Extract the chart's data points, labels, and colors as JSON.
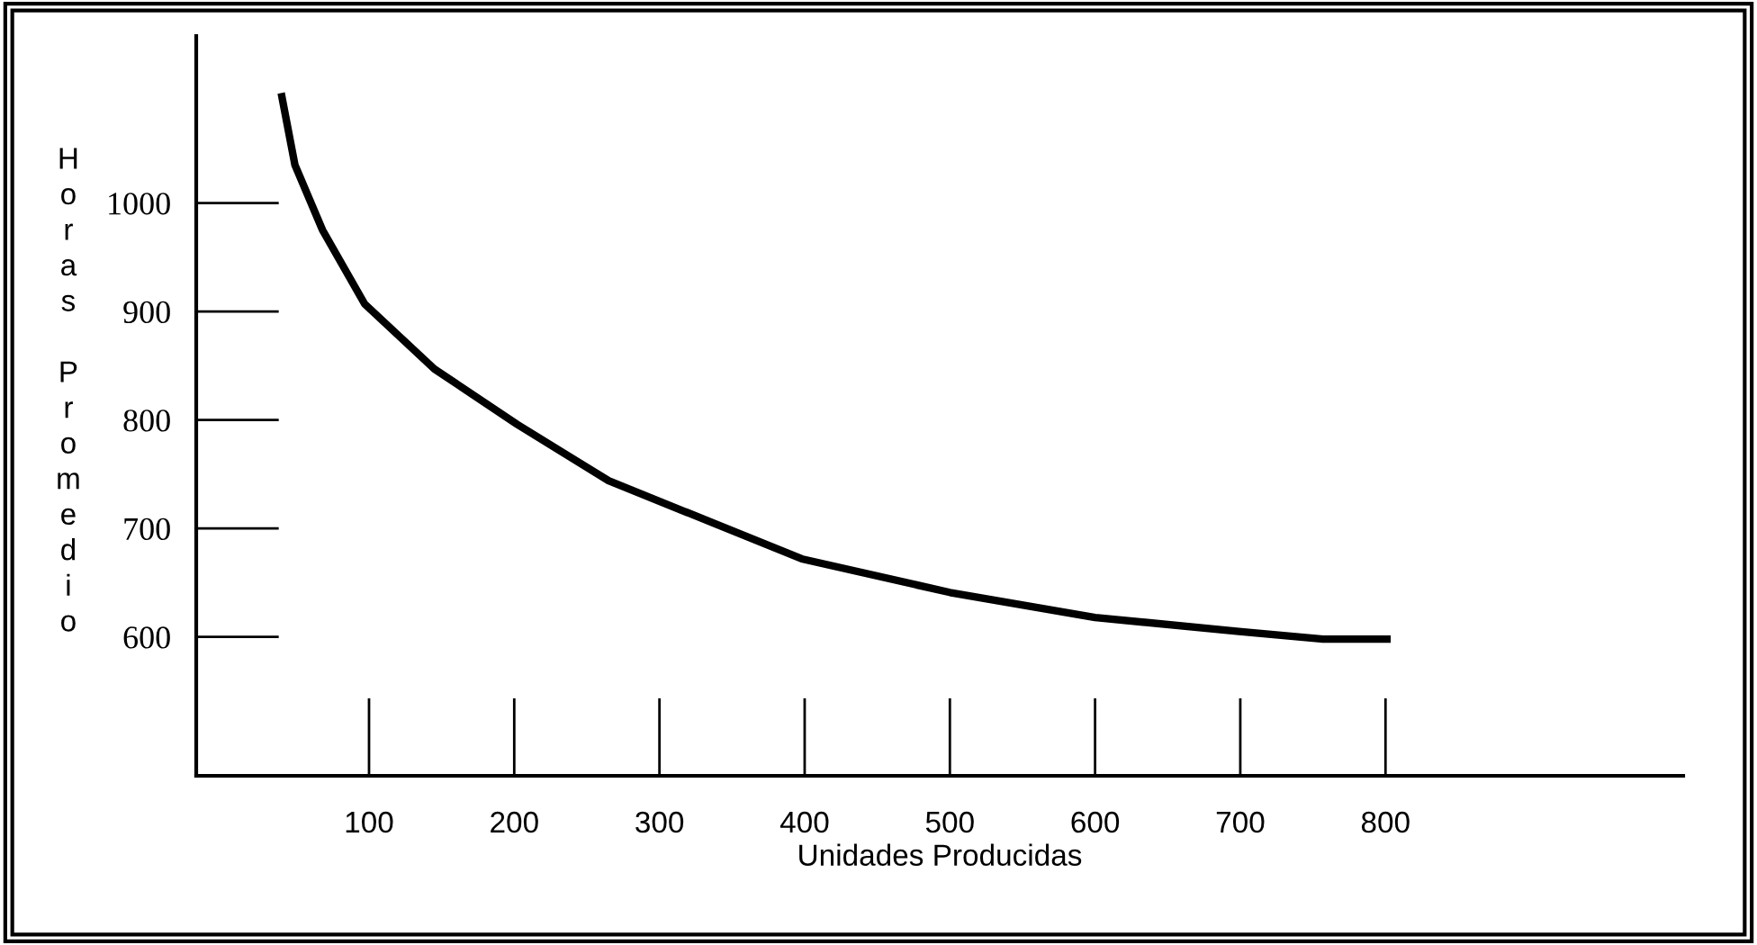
{
  "chart_data": {
    "type": "line",
    "xlabel": "Unidades Producidas",
    "ylabel": "Horas Promedio",
    "x": [
      40,
      49,
      68,
      97,
      145,
      202,
      265,
      339,
      398,
      500,
      600,
      699,
      757,
      801
    ],
    "series": [
      {
        "color": "#000000",
        "values": [
          1098,
          1035,
          975,
          907,
          847,
          796,
          744,
          704,
          672,
          641,
          618,
          605,
          598,
          598
        ]
      }
    ],
    "xlim": [
      -19,
      1005
    ],
    "ylim": [
      472,
      1154
    ],
    "xticks": [
      100,
      200,
      300,
      400,
      500,
      600,
      700,
      800
    ],
    "yticks": [
      600,
      700,
      800,
      900,
      1000
    ],
    "grid": false,
    "legend": false,
    "marker": "none",
    "line_style": "solid"
  }
}
